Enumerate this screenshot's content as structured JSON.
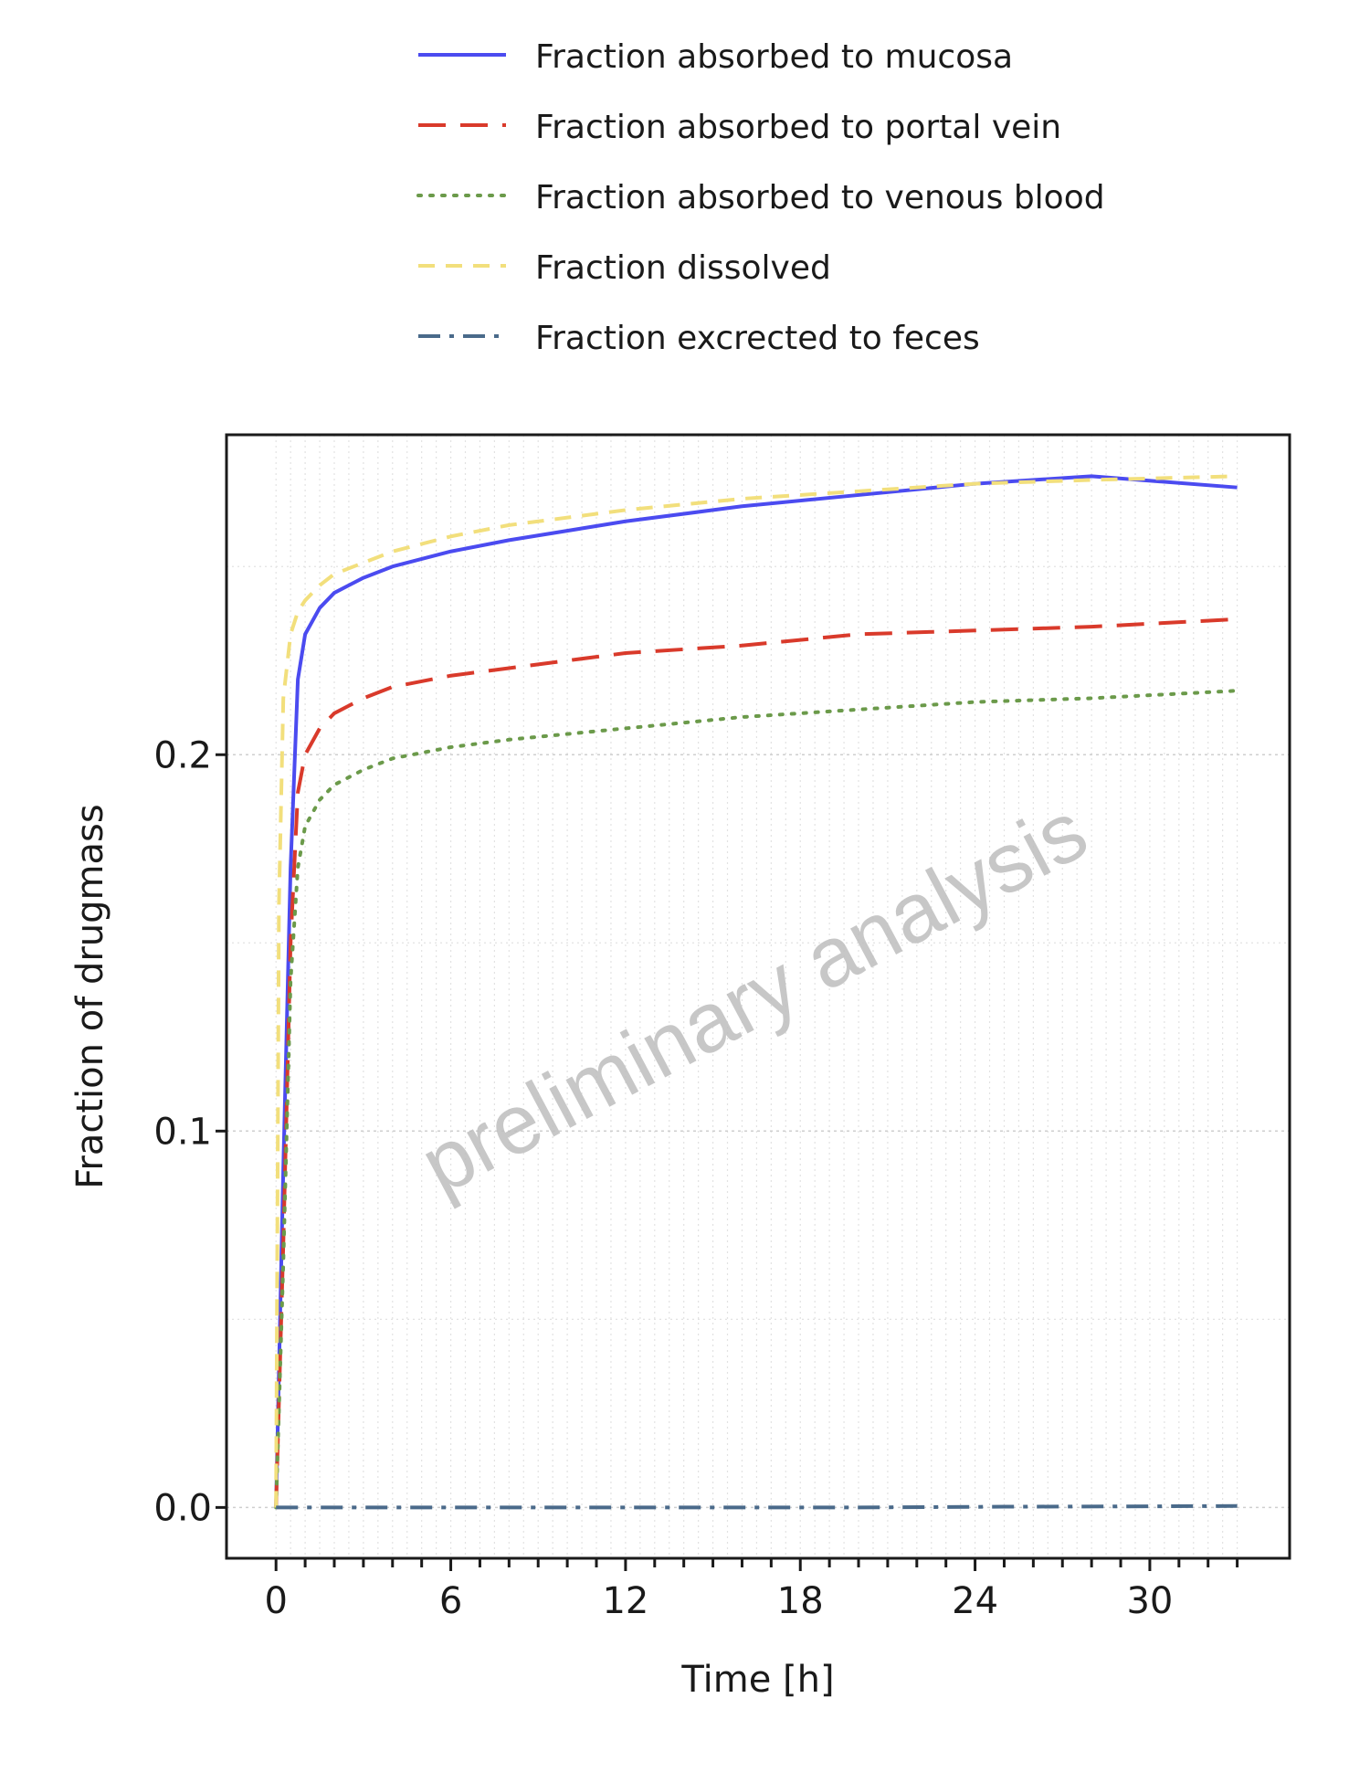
{
  "chart_data": {
    "type": "line",
    "xlabel": "Time [h]",
    "ylabel": "Fraction of drugmass",
    "xlim": [
      -1.7,
      34.8
    ],
    "ylim": [
      -0.0135,
      0.285
    ],
    "xticks": [
      0,
      6,
      12,
      18,
      24,
      30
    ],
    "xtick_labels": [
      "0",
      "6",
      "12",
      "18",
      "24",
      "30"
    ],
    "yticks": [
      0.0,
      0.1,
      0.2
    ],
    "ytick_labels": [
      "0.0",
      "0.1",
      "0.2"
    ],
    "grid": true,
    "legend_position": "top",
    "watermark": "preliminary analysis",
    "series": [
      {
        "name": "Fraction absorbed to mucosa",
        "color": "#4b4bf0",
        "dash": "solid",
        "x": [
          0,
          0.25,
          0.5,
          0.75,
          1,
          1.5,
          2,
          3,
          4,
          6,
          8,
          12,
          16,
          20,
          24,
          28,
          33
        ],
        "y": [
          0,
          0.09,
          0.17,
          0.22,
          0.232,
          0.239,
          0.243,
          0.247,
          0.25,
          0.254,
          0.257,
          0.262,
          0.266,
          0.269,
          0.272,
          0.274,
          0.271
        ]
      },
      {
        "name": "Fraction absorbed to portal vein",
        "color": "#d93a2b",
        "dash": "longdash",
        "x": [
          0,
          0.25,
          0.5,
          0.75,
          1,
          1.5,
          2,
          3,
          4,
          6,
          8,
          12,
          16,
          20,
          24,
          28,
          33
        ],
        "y": [
          0,
          0.07,
          0.15,
          0.19,
          0.2,
          0.207,
          0.211,
          0.215,
          0.218,
          0.221,
          0.223,
          0.227,
          0.229,
          0.232,
          0.233,
          0.234,
          0.236
        ]
      },
      {
        "name": "Fraction absorbed to venous blood",
        "color": "#6b9a4a",
        "dash": "dotted",
        "x": [
          0,
          0.25,
          0.5,
          0.75,
          1,
          1.5,
          2,
          3,
          4,
          6,
          8,
          12,
          16,
          20,
          24,
          28,
          33
        ],
        "y": [
          0,
          0.065,
          0.14,
          0.17,
          0.181,
          0.188,
          0.192,
          0.196,
          0.199,
          0.202,
          0.204,
          0.207,
          0.21,
          0.212,
          0.214,
          0.215,
          0.217
        ]
      },
      {
        "name": "Fraction dissolved",
        "color": "#f2df7c",
        "dash": "dashed",
        "x": [
          0,
          0.1,
          0.25,
          0.5,
          0.75,
          1,
          1.5,
          2,
          3,
          4,
          6,
          8,
          12,
          16,
          20,
          24,
          28,
          33
        ],
        "y": [
          0,
          0.16,
          0.215,
          0.232,
          0.238,
          0.241,
          0.245,
          0.248,
          0.251,
          0.254,
          0.258,
          0.261,
          0.265,
          0.268,
          0.27,
          0.272,
          0.273,
          0.274
        ]
      },
      {
        "name": "Fraction excrected to feces",
        "color": "#4a6a8a",
        "dash": "dotdash",
        "x": [
          0,
          5,
          10,
          15,
          20,
          25,
          30,
          33
        ],
        "y": [
          0,
          0,
          0,
          0,
          0,
          0.0002,
          0.0003,
          0.0004
        ]
      }
    ]
  }
}
